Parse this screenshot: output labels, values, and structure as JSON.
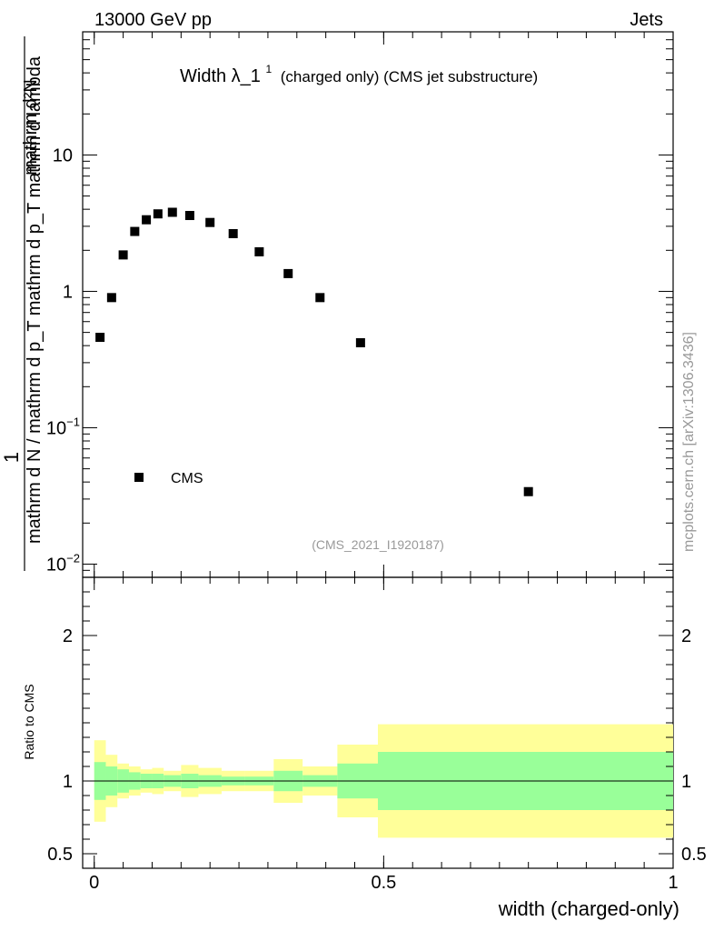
{
  "header": {
    "left": "13000 GeV pp",
    "right": "Jets"
  },
  "plot": {
    "title_main": "Width λ_1",
    "title_sup": "1",
    "title_sub": "(charged only) (CMS jet substructure)",
    "analysis_id": "(CMS_2021_I1920187)",
    "side_label": "mcplots.cern.ch [arXiv:1306.3436]",
    "ylabel_one": "1",
    "ylabel_num": "mathrm d²N",
    "ylabel_den": "mathrm d N / mathrm d p_T mathrm d p_T mathrm d lambda",
    "xlabel": "width (charged-only)",
    "ratio_ylabel": "Ratio to CMS",
    "legend": "CMS",
    "yticks": [
      {
        "value": 0.01,
        "label": "10",
        "exp": "−2"
      },
      {
        "value": 0.1,
        "label": "10",
        "exp": "−1"
      },
      {
        "value": 1,
        "label": "1",
        "exp": ""
      },
      {
        "value": 10,
        "label": "10",
        "exp": ""
      }
    ],
    "xticks": [
      {
        "value": 0,
        "label": "0"
      },
      {
        "value": 0.5,
        "label": "0.5"
      },
      {
        "value": 1,
        "label": "1"
      }
    ],
    "ratio_ticks": [
      {
        "value": 0.5,
        "label": "0.5"
      },
      {
        "value": 1,
        "label": "1"
      },
      {
        "value": 2,
        "label": "2"
      }
    ]
  },
  "chart_data": {
    "type": "scatter",
    "title": "Width λ_1^1 (charged only) (CMS jet substructure)",
    "xlabel": "width (charged-only)",
    "ylabel": "1 / (mathrm d N / mathrm d p_T) · mathrm d²N / (mathrm d p_T mathrm d lambda)",
    "xlim": [
      -0.02,
      1.0
    ],
    "ylim": [
      0.008,
      80
    ],
    "yscale": "log",
    "series": [
      {
        "name": "CMS",
        "x": [
          0.01,
          0.03,
          0.05,
          0.07,
          0.09,
          0.11,
          0.135,
          0.165,
          0.2,
          0.24,
          0.285,
          0.335,
          0.39,
          0.46,
          0.75
        ],
        "y": [
          0.46,
          0.9,
          1.85,
          2.75,
          3.35,
          3.7,
          3.8,
          3.6,
          3.2,
          2.65,
          1.95,
          1.35,
          0.9,
          0.42,
          0.034
        ]
      }
    ],
    "ratio": {
      "ylabel": "Ratio to CMS",
      "ylim": [
        0.4,
        2.4
      ],
      "bins": [
        {
          "lo": 0.0,
          "hi": 0.02,
          "inner": 0.13,
          "outer": 0.28
        },
        {
          "lo": 0.02,
          "hi": 0.04,
          "inner": 0.1,
          "outer": 0.18
        },
        {
          "lo": 0.04,
          "hi": 0.06,
          "inner": 0.08,
          "outer": 0.12
        },
        {
          "lo": 0.06,
          "hi": 0.08,
          "inner": 0.06,
          "outer": 0.1
        },
        {
          "lo": 0.08,
          "hi": 0.1,
          "inner": 0.05,
          "outer": 0.08
        },
        {
          "lo": 0.1,
          "hi": 0.12,
          "inner": 0.05,
          "outer": 0.09
        },
        {
          "lo": 0.12,
          "hi": 0.15,
          "inner": 0.04,
          "outer": 0.07
        },
        {
          "lo": 0.15,
          "hi": 0.18,
          "inner": 0.05,
          "outer": 0.11
        },
        {
          "lo": 0.18,
          "hi": 0.22,
          "inner": 0.04,
          "outer": 0.09
        },
        {
          "lo": 0.22,
          "hi": 0.26,
          "inner": 0.03,
          "outer": 0.07
        },
        {
          "lo": 0.26,
          "hi": 0.31,
          "inner": 0.03,
          "outer": 0.07
        },
        {
          "lo": 0.31,
          "hi": 0.36,
          "inner": 0.07,
          "outer": 0.15
        },
        {
          "lo": 0.36,
          "hi": 0.42,
          "inner": 0.04,
          "outer": 0.1
        },
        {
          "lo": 0.42,
          "hi": 0.49,
          "inner": 0.12,
          "outer": 0.25
        },
        {
          "lo": 0.49,
          "hi": 1.0,
          "inner": 0.2,
          "outer": 0.39
        }
      ],
      "inner_color": "#99ff99",
      "outer_color": "#ffff99"
    }
  }
}
